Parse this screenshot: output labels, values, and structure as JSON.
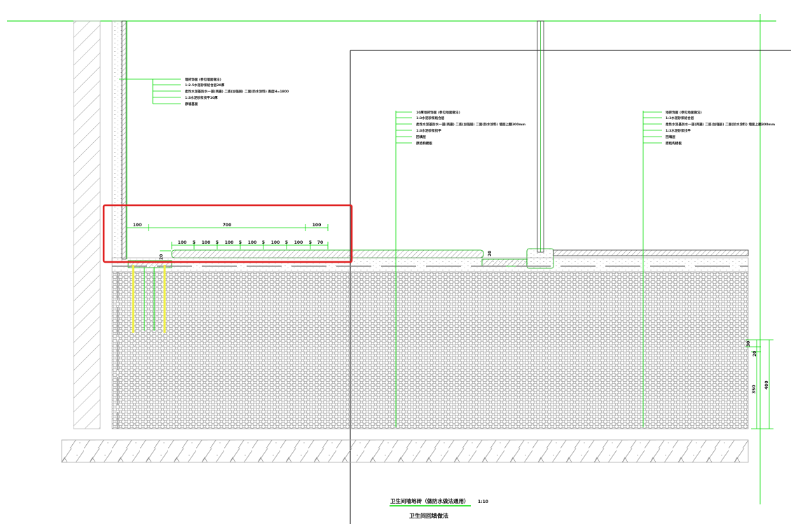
{
  "drawing": {
    "title": "卫生间墙地砖（做防水做法通用）",
    "scale": "1:10",
    "subtitle": "卫生间回填做法",
    "colors": {
      "dimension": "#00dd00",
      "highlight": "#e02020",
      "marker": "#f0f040",
      "line": "#000000"
    }
  },
  "wall_notes": [
    "墙砖饰面 (参见墙面做法)",
    "1:2.5水泥砂浆结合层20厚",
    "柔性水泥基防水一道(两遍) 二底(加强层) 二面(防水涂料) 高度H=1800",
    "1:3水泥砂浆找平10厚",
    "原墙基面"
  ],
  "floor_notes_a": [
    "10厚地砖饰面 (参见地面做法)",
    "1:3水泥砂浆结合层",
    "柔性水泥基防水一道(两遍) 二底(加强层) 二面(防水涂料) 墙面上翻300mm",
    "1:3水泥砂浆找平",
    "回填层",
    "原结构楼板"
  ],
  "floor_notes_b": [
    "地砖饰面 (参见地面做法)",
    "1:3水泥砂浆结合层",
    "柔性水泥基防水一道(两遍) 二底(加强层) 二面(防水涂料) 墙面上翻300mm",
    "1:3水泥砂浆找平",
    "回填层",
    "原结构楼板"
  ],
  "dimensions": {
    "top_row": [
      "100",
      "700",
      "100"
    ],
    "bottom_row": [
      "100",
      "5",
      "100",
      "5",
      "100",
      "5",
      "100",
      "5",
      "100",
      "5",
      "100",
      "5",
      "70"
    ],
    "step": "20",
    "step_right": "20",
    "right_stack": [
      "30",
      "20",
      "350"
    ],
    "right_total": "400"
  }
}
